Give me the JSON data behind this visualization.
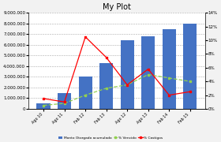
{
  "title": "My Plot",
  "categories": [
    "Ago 10",
    "Ago 11",
    "Feb 12",
    "Feb 13",
    "Ago 12",
    "Ago 13",
    "Feb 14",
    "Feb 15"
  ],
  "bar_values": [
    500000,
    1500000,
    3000000,
    4300000,
    6400000,
    6800000,
    7500000,
    8000000
  ],
  "line1_values": [
    0.5,
    0.8,
    2.0,
    3.0,
    3.5,
    5.0,
    4.5,
    4.0
  ],
  "line2_values": [
    1.5,
    1.0,
    10.5,
    7.5,
    3.5,
    5.8,
    2.0,
    2.5
  ],
  "bar_color": "#4472C4",
  "line1_color": "#92D050",
  "line2_color": "#FF0000",
  "left_ylim": [
    0,
    9000000
  ],
  "left_yticks": [
    0,
    1000000,
    2000000,
    3000000,
    4000000,
    5000000,
    6000000,
    7000000,
    8000000,
    9000000
  ],
  "right_ylim": [
    0,
    14
  ],
  "right_yticks": [
    0,
    2,
    4,
    6,
    8,
    10,
    12,
    14
  ],
  "legend_labels": [
    "Monto Otorgado acumulado",
    "% Vencido",
    "% Castigos"
  ],
  "background_color": "#F2F2F2",
  "plot_bg_color": "#FFFFFF",
  "grid_color": "#AAAAAA",
  "title_fontsize": 7,
  "tick_fontsize": 4,
  "legend_fontsize": 3.2
}
